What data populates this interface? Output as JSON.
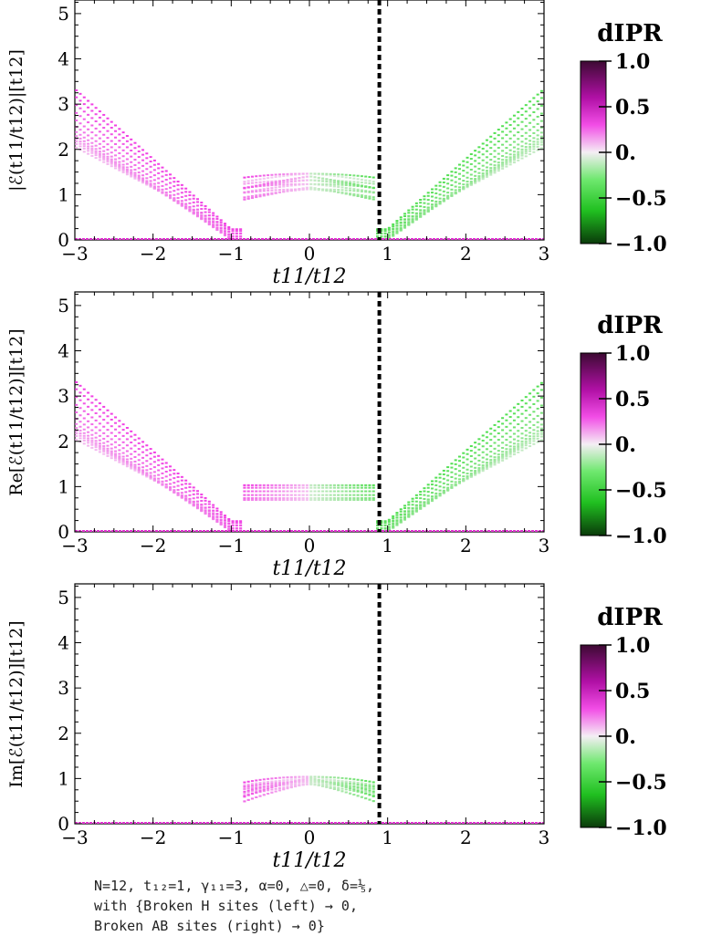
{
  "chart_data": [
    {
      "type": "scatter",
      "panel": "top",
      "ylabel": "|ℰ(t11/t12)|[t12]",
      "xlabel": "t11/t12",
      "xlim": [
        -3,
        3
      ],
      "ylim": [
        0,
        5.3
      ],
      "xticks": [
        -3,
        -2,
        -1,
        0,
        1,
        2,
        3
      ],
      "yticks": [
        0,
        1,
        2,
        3,
        4,
        5
      ],
      "xtick_labels": [
        "−3",
        "−2",
        "−1",
        "0",
        "1",
        "2",
        "3"
      ],
      "ytick_labels": [
        "0",
        "1",
        "2",
        "3",
        "4",
        "5"
      ],
      "dashed_vline_x": 0.894,
      "mode": "abs",
      "colorbar": {
        "title": "dIPR",
        "range": [
          -1.0,
          1.0
        ],
        "tick_labels": [
          "1.0",
          "0.5",
          "0.",
          "−0.5",
          "−1.0"
        ]
      }
    },
    {
      "type": "scatter",
      "panel": "middle",
      "ylabel": "Re[ℰ(t11/t12)][t12]",
      "xlabel": "t11/t12",
      "xlim": [
        -3,
        3
      ],
      "ylim": [
        0,
        5.3
      ],
      "xticks": [
        -3,
        -2,
        -1,
        0,
        1,
        2,
        3
      ],
      "yticks": [
        0,
        1,
        2,
        3,
        4,
        5
      ],
      "xtick_labels": [
        "−3",
        "−2",
        "−1",
        "0",
        "1",
        "2",
        "3"
      ],
      "ytick_labels": [
        "0",
        "1",
        "2",
        "3",
        "4",
        "5"
      ],
      "dashed_vline_x": 0.894,
      "mode": "re",
      "colorbar": {
        "title": "dIPR",
        "range": [
          -1.0,
          1.0
        ],
        "tick_labels": [
          "1.0",
          "0.5",
          "0.",
          "−0.5",
          "−1.0"
        ]
      }
    },
    {
      "type": "scatter",
      "panel": "bottom",
      "ylabel": "Im[ℰ(t11/t12)][t12]",
      "xlabel": "t11/t12",
      "xlim": [
        -3,
        3
      ],
      "ylim": [
        0,
        5.3
      ],
      "xticks": [
        -3,
        -2,
        -1,
        0,
        1,
        2,
        3
      ],
      "yticks": [
        0,
        1,
        2,
        3,
        4,
        5
      ],
      "xtick_labels": [
        "−3",
        "−2",
        "−1",
        "0",
        "1",
        "2",
        "3"
      ],
      "ytick_labels": [
        "0",
        "1",
        "2",
        "3",
        "4",
        "5"
      ],
      "dashed_vline_x": 0.894,
      "mode": "im",
      "colorbar": {
        "title": "dIPR",
        "range": [
          -1.0,
          1.0
        ],
        "tick_labels": [
          "1.0",
          "0.5",
          "0.",
          "−0.5",
          "−1.0"
        ]
      }
    }
  ],
  "caption": {
    "line1": "N=12, t₁₂=1, γ₁₁=3, α=0, △=0, δ=⅕,",
    "line2": "with {Broken H sites (left) → 0,",
    "line3": "Broken AB sites (right) → 0}"
  },
  "colors": {
    "magenta_dark": "#3d0a33",
    "magenta": "#f015e0",
    "pale": "#f4eef4",
    "green": "#2bdc2b",
    "green_dark": "#0a3a0a",
    "vline": "#000000"
  }
}
